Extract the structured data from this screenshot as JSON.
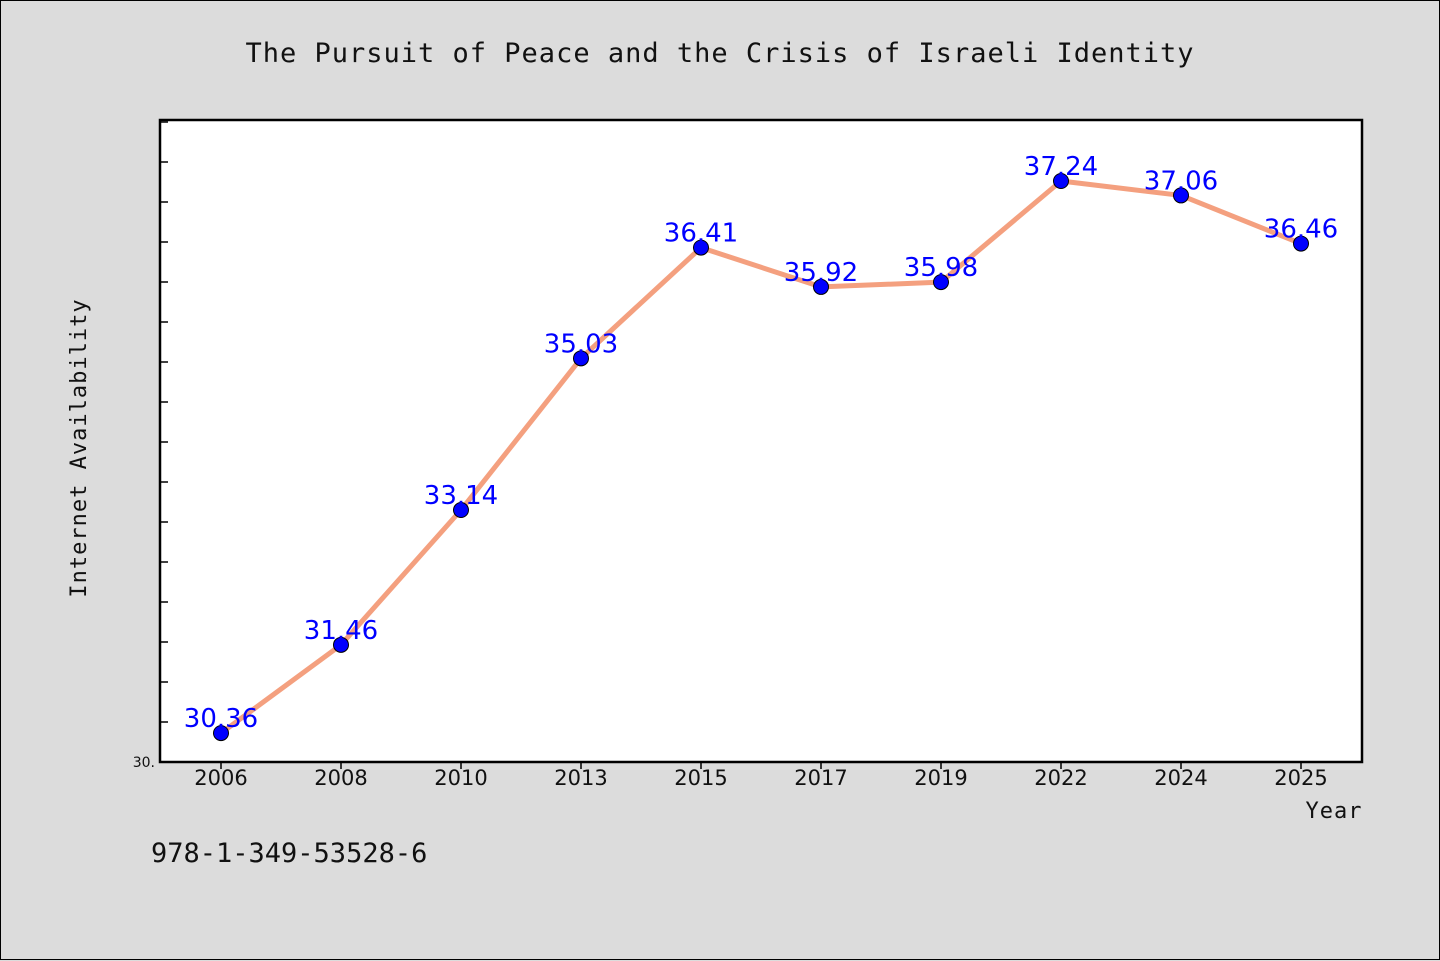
{
  "footer": {
    "code": "978-1-349-53528-6"
  },
  "colors": {
    "line": "#f4a07f",
    "marker": "#0000ff",
    "label": "#0000ff",
    "background": "#dcdcdc",
    "plot_bg": "#ffffff"
  },
  "chart_data": {
    "type": "line",
    "title": "The Pursuit of Peace and the Crisis of Israeli Identity",
    "xlabel": "Year",
    "ylabel": "Internet Availability",
    "categories": [
      "2006",
      "2008",
      "2010",
      "2013",
      "2015",
      "2017",
      "2019",
      "2022",
      "2024",
      "2025"
    ],
    "series": [
      {
        "values": [
          30.36,
          31.46,
          33.14,
          35.03,
          36.41,
          35.92,
          35.98,
          37.24,
          37.06,
          36.46
        ]
      }
    ],
    "data_labels": [
      "30.36",
      "31.46",
      "33.14",
      "35.03",
      "36.41",
      "35.92",
      "35.98",
      "37.24",
      "37.06",
      "36.46"
    ],
    "ylim": [
      30.0,
      38.0
    ],
    "y_tick_label": "30.",
    "grid": false,
    "legend": "none"
  }
}
